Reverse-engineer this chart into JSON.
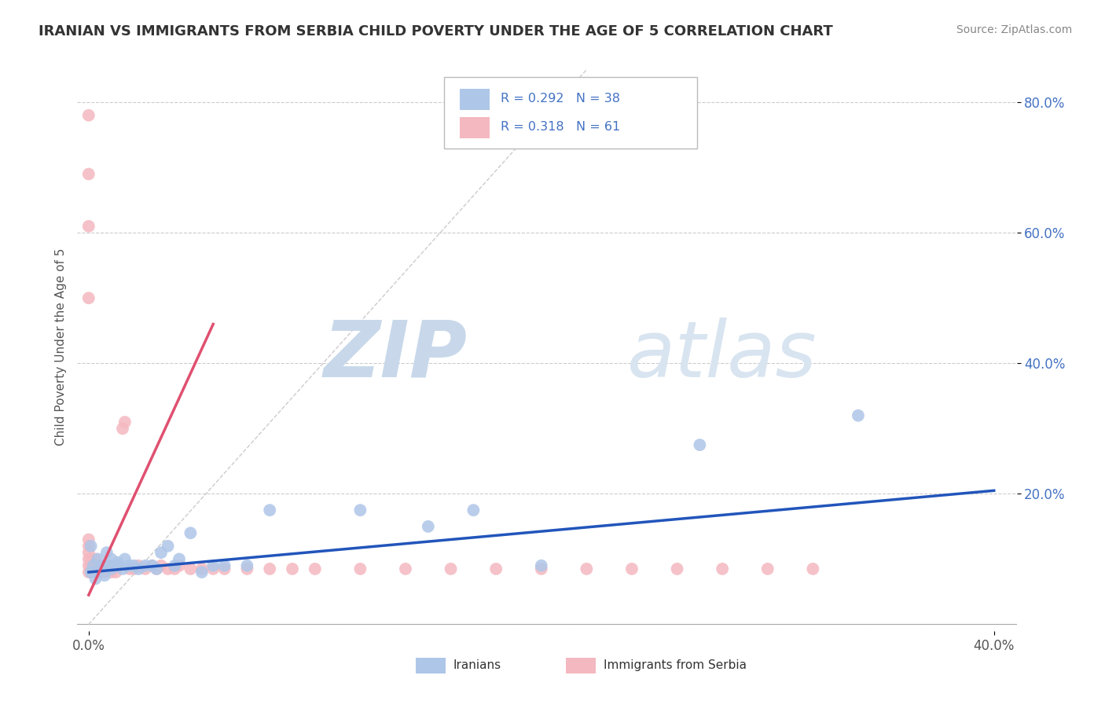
{
  "title": "IRANIAN VS IMMIGRANTS FROM SERBIA CHILD POVERTY UNDER THE AGE OF 5 CORRELATION CHART",
  "source": "Source: ZipAtlas.com",
  "ylabel": "Child Poverty Under the Age of 5",
  "xlim": [
    -0.005,
    0.41
  ],
  "ylim": [
    -0.01,
    0.86
  ],
  "xticks": [
    0.0,
    0.4
  ],
  "xticklabels": [
    "0.0%",
    "40.0%"
  ],
  "yticks": [
    0.2,
    0.4,
    0.6,
    0.8
  ],
  "yticklabels": [
    "20.0%",
    "40.0%",
    "60.0%",
    "80.0%"
  ],
  "ytick_color": "#4472c4",
  "xtick_color": "#555555",
  "grid_color": "#cccccc",
  "background_color": "#ffffff",
  "watermark_zip": "ZIP",
  "watermark_atlas": "atlas",
  "iranians_color": "#aec6e8",
  "serbia_color": "#f4b8c0",
  "iranians_line_color": "#2255bb",
  "serbia_line_color": "#e05070",
  "title_fontsize": 13,
  "iran_line_x": [
    0.0,
    0.4
  ],
  "iran_line_y": [
    0.08,
    0.205
  ],
  "serbia_line_x": [
    0.0,
    0.055
  ],
  "serbia_line_y": [
    0.045,
    0.46
  ],
  "diag_line_x": [
    0.0,
    0.22
  ],
  "diag_line_y": [
    0.0,
    0.85
  ],
  "iranians_x": [
    0.001,
    0.001,
    0.002,
    0.003,
    0.004,
    0.005,
    0.006,
    0.007,
    0.008,
    0.009,
    0.01,
    0.01,
    0.012,
    0.013,
    0.015,
    0.016,
    0.018,
    0.02,
    0.022,
    0.025,
    0.028,
    0.03,
    0.032,
    0.035,
    0.038,
    0.04,
    0.045,
    0.05,
    0.055,
    0.06,
    0.07,
    0.08,
    0.12,
    0.15,
    0.17,
    0.2,
    0.27,
    0.34
  ],
  "iranians_y": [
    0.08,
    0.12,
    0.09,
    0.07,
    0.1,
    0.085,
    0.09,
    0.075,
    0.11,
    0.09,
    0.085,
    0.1,
    0.09,
    0.095,
    0.085,
    0.1,
    0.09,
    0.09,
    0.085,
    0.09,
    0.09,
    0.085,
    0.11,
    0.12,
    0.09,
    0.1,
    0.14,
    0.08,
    0.09,
    0.09,
    0.09,
    0.175,
    0.175,
    0.15,
    0.175,
    0.09,
    0.275,
    0.32
  ],
  "serbia_x": [
    0.0,
    0.0,
    0.0,
    0.0,
    0.0,
    0.0,
    0.0,
    0.0,
    0.0,
    0.0,
    0.001,
    0.001,
    0.001,
    0.002,
    0.002,
    0.003,
    0.003,
    0.004,
    0.004,
    0.005,
    0.005,
    0.006,
    0.007,
    0.008,
    0.009,
    0.01,
    0.01,
    0.011,
    0.012,
    0.013,
    0.015,
    0.016,
    0.018,
    0.02,
    0.022,
    0.025,
    0.028,
    0.03,
    0.032,
    0.035,
    0.038,
    0.04,
    0.045,
    0.05,
    0.055,
    0.06,
    0.07,
    0.08,
    0.09,
    0.1,
    0.12,
    0.14,
    0.16,
    0.18,
    0.2,
    0.22,
    0.24,
    0.26,
    0.28,
    0.3,
    0.32
  ],
  "serbia_y": [
    0.08,
    0.09,
    0.1,
    0.11,
    0.12,
    0.13,
    0.5,
    0.61,
    0.69,
    0.78,
    0.08,
    0.09,
    0.1,
    0.085,
    0.09,
    0.08,
    0.1,
    0.085,
    0.09,
    0.08,
    0.09,
    0.085,
    0.08,
    0.09,
    0.085,
    0.08,
    0.09,
    0.085,
    0.08,
    0.09,
    0.3,
    0.31,
    0.085,
    0.085,
    0.09,
    0.085,
    0.09,
    0.085,
    0.09,
    0.085,
    0.085,
    0.09,
    0.085,
    0.085,
    0.085,
    0.085,
    0.085,
    0.085,
    0.085,
    0.085,
    0.085,
    0.085,
    0.085,
    0.085,
    0.085,
    0.085,
    0.085,
    0.085,
    0.085,
    0.085,
    0.085
  ]
}
